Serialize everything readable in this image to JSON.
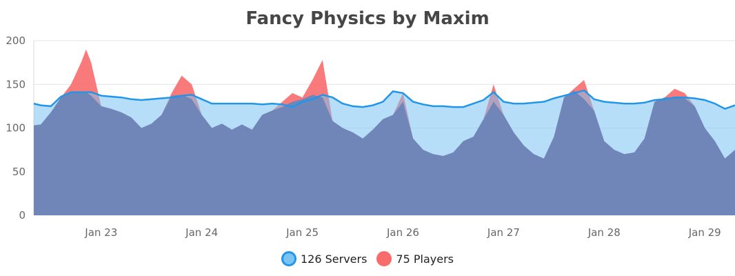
{
  "chart_data": {
    "type": "area",
    "title": "Fancy Physics by Maxim",
    "xlabel": "",
    "ylabel": "",
    "ylim": [
      0,
      200
    ],
    "y_ticks": [
      "0",
      "50",
      "100",
      "150",
      "200"
    ],
    "x_ticks": [
      "Jan 23",
      "Jan 24",
      "Jan 25",
      "Jan 26",
      "Jan 27",
      "Jan 28",
      "Jan 29"
    ],
    "x_range_days": [
      22.33,
      29.3
    ],
    "grid": true,
    "legend_position": "bottom",
    "series": [
      {
        "name": "126 Servers",
        "color": "#7cc3f4",
        "stroke": "#2196e8",
        "points": [
          [
            22.33,
            128
          ],
          [
            22.4,
            126
          ],
          [
            22.5,
            125
          ],
          [
            22.6,
            136
          ],
          [
            22.7,
            141
          ],
          [
            22.8,
            141
          ],
          [
            22.9,
            141
          ],
          [
            23.0,
            137
          ],
          [
            23.1,
            136
          ],
          [
            23.2,
            135
          ],
          [
            23.3,
            133
          ],
          [
            23.4,
            132
          ],
          [
            23.5,
            133
          ],
          [
            23.6,
            134
          ],
          [
            23.7,
            135
          ],
          [
            23.8,
            137
          ],
          [
            23.9,
            138
          ],
          [
            24.0,
            133
          ],
          [
            24.1,
            128
          ],
          [
            24.2,
            128
          ],
          [
            24.3,
            128
          ],
          [
            24.4,
            128
          ],
          [
            24.5,
            128
          ],
          [
            24.6,
            127
          ],
          [
            24.7,
            128
          ],
          [
            24.8,
            127
          ],
          [
            24.9,
            124
          ],
          [
            25.0,
            130
          ],
          [
            25.1,
            133
          ],
          [
            25.2,
            138
          ],
          [
            25.3,
            135
          ],
          [
            25.4,
            128
          ],
          [
            25.5,
            125
          ],
          [
            25.6,
            124
          ],
          [
            25.7,
            126
          ],
          [
            25.8,
            130
          ],
          [
            25.9,
            142
          ],
          [
            26.0,
            140
          ],
          [
            26.1,
            130
          ],
          [
            26.2,
            127
          ],
          [
            26.3,
            125
          ],
          [
            26.4,
            125
          ],
          [
            26.5,
            124
          ],
          [
            26.6,
            124
          ],
          [
            26.7,
            128
          ],
          [
            26.8,
            132
          ],
          [
            26.9,
            141
          ],
          [
            27.0,
            130
          ],
          [
            27.1,
            128
          ],
          [
            27.2,
            128
          ],
          [
            27.3,
            129
          ],
          [
            27.4,
            130
          ],
          [
            27.5,
            134
          ],
          [
            27.6,
            137
          ],
          [
            27.7,
            140
          ],
          [
            27.8,
            143
          ],
          [
            27.9,
            133
          ],
          [
            28.0,
            130
          ],
          [
            28.1,
            129
          ],
          [
            28.2,
            128
          ],
          [
            28.3,
            128
          ],
          [
            28.4,
            129
          ],
          [
            28.5,
            132
          ],
          [
            28.6,
            133
          ],
          [
            28.7,
            135
          ],
          [
            28.8,
            135
          ],
          [
            28.9,
            134
          ],
          [
            29.0,
            132
          ],
          [
            29.1,
            128
          ],
          [
            29.2,
            122
          ],
          [
            29.3,
            126
          ]
        ]
      },
      {
        "name": "75 Players",
        "color": "#f86c6b",
        "stroke": "#f86c6b",
        "points": [
          [
            22.33,
            103
          ],
          [
            22.4,
            104
          ],
          [
            22.5,
            118
          ],
          [
            22.6,
            135
          ],
          [
            22.7,
            150
          ],
          [
            22.8,
            175
          ],
          [
            22.85,
            190
          ],
          [
            22.9,
            175
          ],
          [
            23.0,
            125
          ],
          [
            23.1,
            122
          ],
          [
            23.2,
            118
          ],
          [
            23.3,
            112
          ],
          [
            23.4,
            100
          ],
          [
            23.5,
            105
          ],
          [
            23.6,
            115
          ],
          [
            23.7,
            140
          ],
          [
            23.8,
            160
          ],
          [
            23.9,
            150
          ],
          [
            24.0,
            115
          ],
          [
            24.1,
            100
          ],
          [
            24.2,
            105
          ],
          [
            24.3,
            98
          ],
          [
            24.4,
            104
          ],
          [
            24.5,
            98
          ],
          [
            24.6,
            115
          ],
          [
            24.7,
            120
          ],
          [
            24.8,
            130
          ],
          [
            24.9,
            140
          ],
          [
            25.0,
            135
          ],
          [
            25.1,
            155
          ],
          [
            25.2,
            178
          ],
          [
            25.3,
            108
          ],
          [
            25.4,
            100
          ],
          [
            25.5,
            95
          ],
          [
            25.6,
            88
          ],
          [
            25.7,
            98
          ],
          [
            25.8,
            110
          ],
          [
            25.9,
            115
          ],
          [
            26.0,
            140
          ],
          [
            26.1,
            88
          ],
          [
            26.2,
            75
          ],
          [
            26.3,
            70
          ],
          [
            26.4,
            68
          ],
          [
            26.5,
            72
          ],
          [
            26.6,
            85
          ],
          [
            26.7,
            90
          ],
          [
            26.8,
            110
          ],
          [
            26.9,
            150
          ],
          [
            27.0,
            115
          ],
          [
            27.1,
            95
          ],
          [
            27.2,
            80
          ],
          [
            27.3,
            70
          ],
          [
            27.4,
            65
          ],
          [
            27.5,
            90
          ],
          [
            27.6,
            135
          ],
          [
            27.7,
            145
          ],
          [
            27.8,
            155
          ],
          [
            27.9,
            120
          ],
          [
            28.0,
            85
          ],
          [
            28.1,
            75
          ],
          [
            28.2,
            70
          ],
          [
            28.3,
            72
          ],
          [
            28.4,
            88
          ],
          [
            28.5,
            130
          ],
          [
            28.6,
            135
          ],
          [
            28.7,
            145
          ],
          [
            28.8,
            140
          ],
          [
            28.9,
            125
          ],
          [
            29.0,
            100
          ],
          [
            29.1,
            85
          ],
          [
            29.2,
            65
          ],
          [
            29.3,
            75
          ]
        ]
      }
    ]
  }
}
